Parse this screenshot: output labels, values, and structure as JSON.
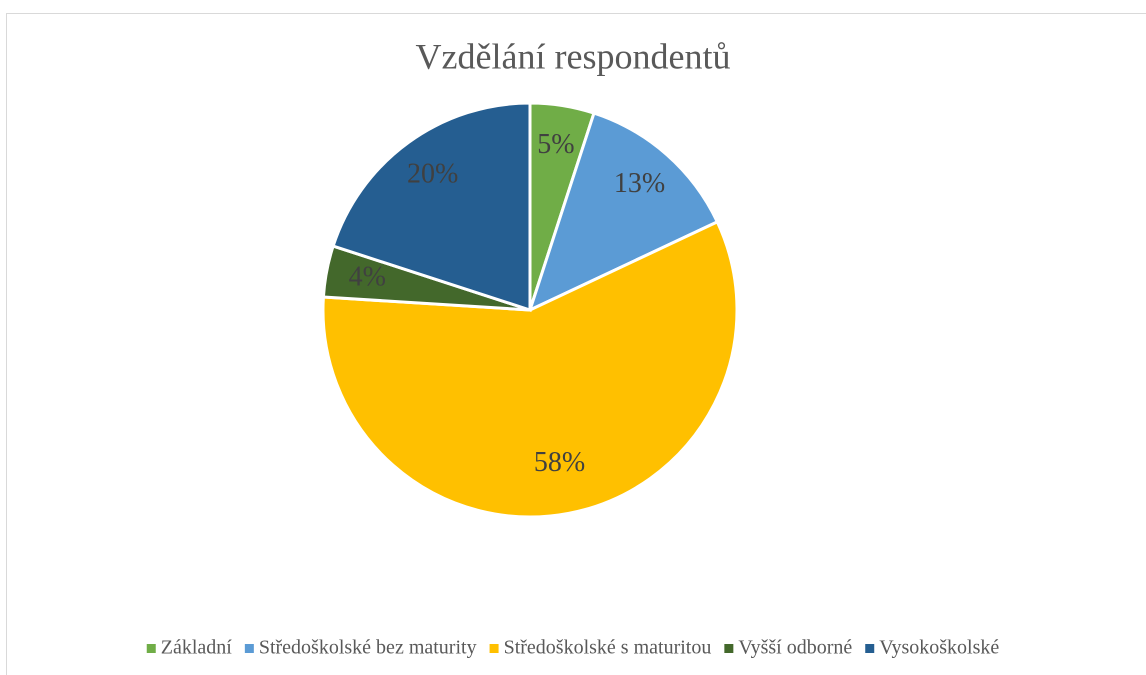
{
  "chart_data": {
    "type": "pie",
    "title": "Vzdělání respondentů",
    "categories": [
      "Základní",
      "Středoškolské bez maturity",
      "Středoškolské s maturitou",
      "Vyšší odborné",
      "Vysokoškolské"
    ],
    "values": [
      5,
      13,
      58,
      4,
      20
    ],
    "value_labels": [
      "5%",
      "13%",
      "58%",
      "4%",
      "20%"
    ],
    "colors": [
      "#70ad47",
      "#5b9bd5",
      "#ffc000",
      "#43682b",
      "#255e91"
    ],
    "legend": "bottom"
  }
}
